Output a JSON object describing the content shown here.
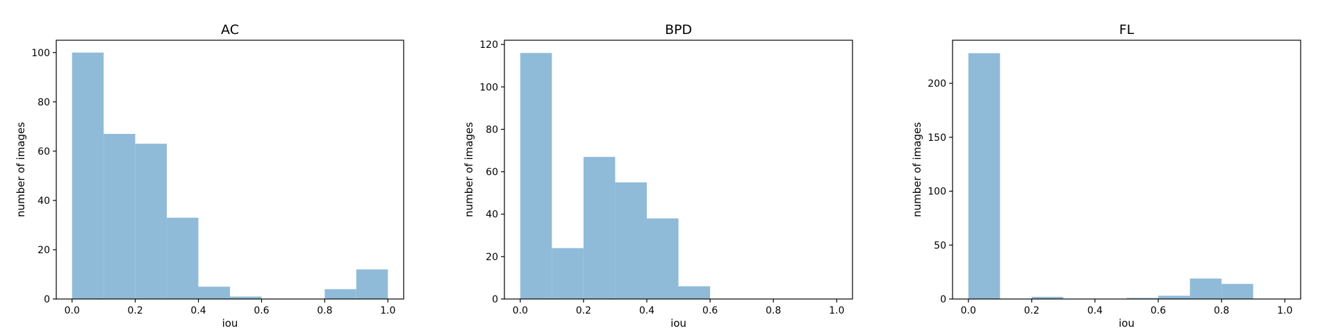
{
  "chart_data": [
    {
      "type": "bar",
      "title": "AC",
      "xlabel": "iou",
      "ylabel": "number of images",
      "bin_edges": [
        0.0,
        0.1,
        0.2,
        0.3,
        0.4,
        0.5,
        0.6,
        0.7,
        0.8,
        0.9,
        1.0
      ],
      "values": [
        100,
        67,
        63,
        33,
        5,
        1,
        0,
        0,
        4,
        12
      ],
      "xlim": [
        -0.05,
        1.05
      ],
      "ylim": [
        0,
        105
      ],
      "xticks": [
        0.0,
        0.2,
        0.4,
        0.6,
        0.8,
        1.0
      ],
      "xtick_labels": [
        "0.0",
        "0.2",
        "0.4",
        "0.6",
        "0.8",
        "1.0"
      ],
      "yticks": [
        0,
        20,
        40,
        60,
        80,
        100
      ],
      "ytick_labels": [
        "0",
        "20",
        "40",
        "60",
        "80",
        "100"
      ],
      "grid": false,
      "bar_color": "#8fbbd9"
    },
    {
      "type": "bar",
      "title": "BPD",
      "xlabel": "iou",
      "ylabel": "number of images",
      "bin_edges": [
        0.0,
        0.1,
        0.2,
        0.3,
        0.4,
        0.5,
        0.6,
        0.7,
        0.8,
        0.9,
        1.0
      ],
      "values": [
        116,
        24,
        67,
        55,
        38,
        6,
        0,
        0,
        0,
        0
      ],
      "xlim": [
        -0.05,
        1.05
      ],
      "ylim": [
        0,
        122
      ],
      "xticks": [
        0.0,
        0.2,
        0.4,
        0.6,
        0.8,
        1.0
      ],
      "xtick_labels": [
        "0.0",
        "0.2",
        "0.4",
        "0.6",
        "0.8",
        "1.0"
      ],
      "yticks": [
        0,
        20,
        40,
        60,
        80,
        100,
        120
      ],
      "ytick_labels": [
        "0",
        "20",
        "40",
        "60",
        "80",
        "100",
        "120"
      ],
      "grid": false,
      "bar_color": "#8fbbd9"
    },
    {
      "type": "bar",
      "title": "FL",
      "xlabel": "iou",
      "ylabel": "number of images",
      "bin_edges": [
        0.0,
        0.1,
        0.2,
        0.3,
        0.4,
        0.5,
        0.6,
        0.7,
        0.8,
        0.9,
        1.0
      ],
      "values": [
        228,
        0,
        2,
        0,
        0,
        1,
        3,
        19,
        14,
        0
      ],
      "xlim": [
        -0.05,
        1.05
      ],
      "ylim": [
        0,
        240
      ],
      "xticks": [
        0.0,
        0.2,
        0.4,
        0.6,
        0.8,
        1.0
      ],
      "xtick_labels": [
        "0.0",
        "0.2",
        "0.4",
        "0.6",
        "0.8",
        "1.0"
      ],
      "yticks": [
        0,
        50,
        100,
        150,
        200
      ],
      "ytick_labels": [
        "0",
        "50",
        "100",
        "150",
        "200"
      ],
      "grid": false,
      "bar_color": "#8fbbd9"
    }
  ]
}
